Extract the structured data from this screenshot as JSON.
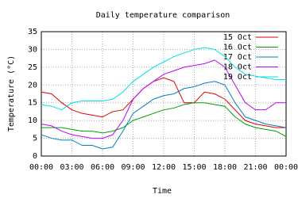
{
  "chart_data": {
    "type": "line",
    "title": "Daily temperature comparison",
    "x_label": "Time",
    "y_label": "Temperature (°C)",
    "x": [
      0,
      1,
      2,
      3,
      4,
      5,
      6,
      7,
      8,
      9,
      10,
      11,
      12,
      13,
      14,
      15,
      16,
      17,
      18,
      19,
      20,
      21,
      22,
      23,
      24
    ],
    "xlim": [
      0,
      24
    ],
    "xticks": [
      {
        "value": 0,
        "label": "00:00"
      },
      {
        "value": 3,
        "label": "03:00"
      },
      {
        "value": 6,
        "label": "06:00"
      },
      {
        "value": 9,
        "label": "09:00"
      },
      {
        "value": 12,
        "label": "12:00"
      },
      {
        "value": 15,
        "label": "15:00"
      },
      {
        "value": 18,
        "label": "18:00"
      },
      {
        "value": 21,
        "label": "21:00"
      },
      {
        "value": 24,
        "label": "00:00"
      }
    ],
    "ylim": [
      0,
      35
    ],
    "yticks": [
      0,
      5,
      10,
      15,
      20,
      25,
      30,
      35
    ],
    "grid": true,
    "legend": "top-right",
    "series": [
      {
        "name": "15 Oct",
        "color": "#e00000",
        "values": [
          18,
          17.5,
          15,
          13,
          12,
          11.5,
          11,
          12.5,
          13,
          16,
          19,
          21,
          22,
          21,
          15,
          15,
          18,
          17.5,
          16,
          13,
          10,
          9,
          8.5,
          8,
          8
        ]
      },
      {
        "name": "16 Oct",
        "color": "#00a000",
        "values": [
          8,
          8,
          8,
          7.5,
          7,
          7,
          6.5,
          7,
          8,
          10,
          11,
          12,
          13,
          13.5,
          14.5,
          15,
          15,
          14.5,
          14,
          11,
          9,
          8,
          7.5,
          7,
          5.5
        ]
      },
      {
        "name": "17 Oct",
        "color": "#0080c0",
        "values": [
          6,
          5,
          4.5,
          4.5,
          3,
          3,
          2,
          2.5,
          7,
          12,
          14,
          16,
          17,
          17.5,
          19,
          19.5,
          20.5,
          21,
          20,
          15,
          11,
          10,
          9,
          8.5,
          8
        ]
      },
      {
        "name": "18 Oct",
        "color": "#c000ff",
        "values": [
          9,
          8.5,
          7,
          6,
          5.5,
          5,
          5,
          6,
          10,
          16,
          19,
          21,
          23,
          24,
          25,
          25.5,
          26,
          27,
          25,
          20,
          15,
          13,
          13,
          15,
          15
        ]
      },
      {
        "name": "19 Oct",
        "color": "#00e0e0",
        "values": [
          14.5,
          14,
          13,
          15,
          15.5,
          15.5,
          15.5,
          16,
          18,
          21,
          23,
          25,
          26.5,
          28,
          29,
          30,
          30.5,
          30,
          28,
          25,
          23,
          22.5,
          22,
          21.5,
          21.5
        ]
      }
    ]
  }
}
